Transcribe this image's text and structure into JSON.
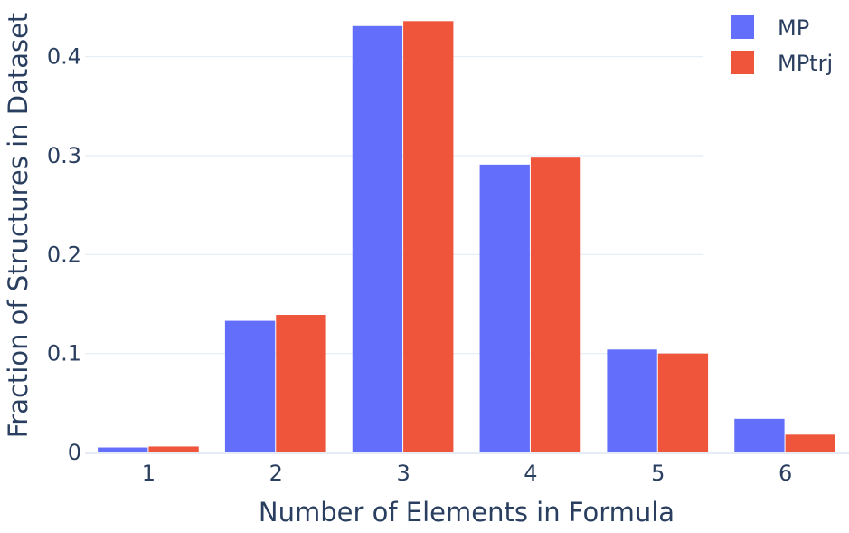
{
  "chart_data": {
    "type": "bar",
    "title": "",
    "xlabel": "Number of Elements in Formula",
    "ylabel": "Fraction of Structures in Dataset",
    "categories": [
      "1",
      "2",
      "3",
      "4",
      "5",
      "6"
    ],
    "series": [
      {
        "name": "MP",
        "values": [
          0.005,
          0.133,
          0.431,
          0.291,
          0.104,
          0.034
        ]
      },
      {
        "name": "MPtrj",
        "values": [
          0.006,
          0.139,
          0.436,
          0.298,
          0.1,
          0.018
        ]
      }
    ],
    "ylim": [
      0,
      0.45
    ],
    "yticks": [
      0,
      0.1,
      0.2,
      0.3,
      0.4
    ],
    "ytick_labels": [
      "0",
      "0.1",
      "0.2",
      "0.3",
      "0.4"
    ],
    "grid": true,
    "legend_position": "top-right",
    "colors": {
      "MP": "#636efa",
      "MPtrj": "#ef553b",
      "grid": "#e5ecf6",
      "text": "#2a3f5f"
    }
  }
}
